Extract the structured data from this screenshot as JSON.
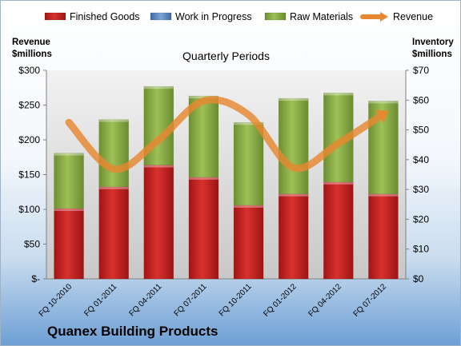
{
  "chart_data": {
    "type": "bar",
    "title": "Quarterly Periods",
    "y_left_label": [
      "Revenue",
      "$millions"
    ],
    "y_right_label": [
      "Inventory",
      "$millions"
    ],
    "left_axis": {
      "min": 0,
      "max": 300,
      "step": 50,
      "ticks": [
        "$-",
        "$50",
        "$100",
        "$150",
        "$200",
        "$250",
        "$300"
      ]
    },
    "right_axis": {
      "min": 0,
      "max": 70,
      "step": 10,
      "ticks": [
        "$0",
        "$10",
        "$20",
        "$30",
        "$40",
        "$50",
        "$60",
        "$70"
      ]
    },
    "categories": [
      "FQ 10-2010",
      "FQ 01-2011",
      "FQ 04-2011",
      "FQ 07-2011",
      "FQ 10-2011",
      "FQ 01-2012",
      "FQ 04-2012",
      "FQ 07-2012"
    ],
    "series": [
      {
        "name": "Finished Goods",
        "kind": "stacked-bar",
        "axis": "right",
        "color": "#c0201f",
        "values": [
          23.6,
          30.9,
          38.2,
          34.1,
          24.7,
          28.5,
          32.5,
          28.5
        ]
      },
      {
        "name": "Work in Progress",
        "kind": "stacked-bar",
        "axis": "right",
        "color": "#5b87c5",
        "values": [
          0,
          0,
          0,
          0,
          0,
          0,
          0,
          0
        ]
      },
      {
        "name": "Raw Materials",
        "kind": "stacked-bar",
        "axis": "right",
        "color": "#8aac46",
        "values": [
          18.6,
          22.6,
          26.4,
          27.3,
          27.8,
          32.1,
          29.9,
          31.2
        ]
      },
      {
        "name": "Revenue",
        "kind": "line",
        "axis": "left",
        "color": "#e8872f",
        "values": [
          225,
          158,
          200,
          256,
          236,
          160,
          195,
          237
        ]
      }
    ],
    "grid": false,
    "legend_position": "top"
  },
  "footer": {
    "company": "Quanex Building Products"
  }
}
